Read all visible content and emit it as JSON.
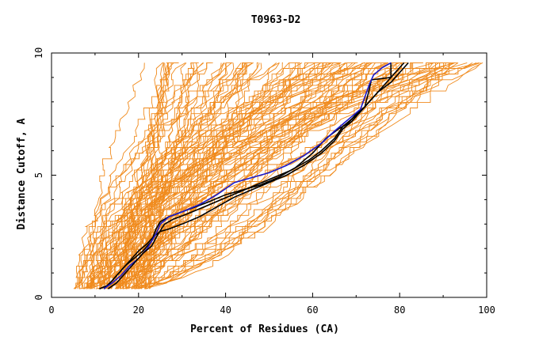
{
  "chart_data": {
    "type": "line",
    "title": "T0963-D2",
    "xlabel": "Percent of Residues (CA)",
    "ylabel": "Distance Cutoff, A",
    "xlim": [
      0,
      100
    ],
    "ylim": [
      0,
      10
    ],
    "x_ticks": [
      0,
      20,
      40,
      60,
      80,
      100
    ],
    "y_ticks": [
      0,
      5,
      10
    ],
    "grid": false,
    "colors": {
      "background_models": "#f08a1c",
      "highlight_1": "#000000",
      "highlight_2": "#000000",
      "highlight_3": "#1a1acc",
      "axes": "#000000"
    },
    "background_envelope": {
      "description_free": true,
      "model_count": 120,
      "start_x_range": [
        5,
        22
      ],
      "end_x_range": [
        20,
        100
      ],
      "y_start": 0.35,
      "y_end": 9.6
    },
    "series": [
      {
        "color": "#000000",
        "x": [
          11,
          13,
          15,
          17,
          19,
          21,
          23,
          24,
          25,
          27,
          30,
          33,
          36,
          40,
          44,
          48,
          52,
          56,
          60,
          63,
          66,
          68,
          70,
          72,
          73,
          73.5,
          78,
          78
        ],
        "y": [
          0.35,
          0.5,
          0.9,
          1.3,
          1.6,
          1.9,
          2.3,
          2.8,
          3.1,
          3.3,
          3.5,
          3.7,
          3.9,
          4.2,
          4.4,
          4.6,
          4.9,
          5.3,
          5.9,
          6.5,
          6.9,
          7.1,
          7.5,
          7.8,
          8.5,
          8.9,
          9.0,
          9.6
        ]
      },
      {
        "color": "#000000",
        "x": [
          12,
          14,
          16,
          18,
          20,
          22,
          23.5,
          25,
          27,
          30,
          34,
          38,
          42,
          46,
          50,
          54,
          58,
          62,
          65,
          67,
          69,
          71,
          73,
          75,
          78,
          80,
          82
        ],
        "y": [
          0.35,
          0.7,
          1.1,
          1.5,
          1.9,
          2.2,
          2.5,
          2.7,
          2.8,
          3.0,
          3.3,
          3.7,
          4.1,
          4.4,
          4.7,
          5.0,
          5.4,
          5.9,
          6.4,
          6.9,
          7.2,
          7.6,
          8.0,
          8.4,
          8.8,
          9.2,
          9.6
        ]
      },
      {
        "color": "#1a1acc",
        "x": [
          12,
          14,
          16,
          18,
          20,
          22,
          24,
          25,
          27,
          30,
          34,
          38,
          42,
          46,
          50,
          54,
          58,
          62,
          65,
          67,
          69,
          71,
          72,
          73,
          74,
          76,
          78
        ],
        "y": [
          0.35,
          0.6,
          0.9,
          1.3,
          1.6,
          2.0,
          2.6,
          3.0,
          3.3,
          3.5,
          3.8,
          4.2,
          4.7,
          4.9,
          5.1,
          5.4,
          5.8,
          6.3,
          6.8,
          7.1,
          7.4,
          7.7,
          8.2,
          8.7,
          9.1,
          9.4,
          9.6
        ]
      },
      {
        "color": "#000000",
        "x": [
          13,
          15,
          17,
          19,
          21,
          23,
          24.5,
          26,
          28,
          31,
          35,
          39,
          43,
          47,
          51,
          55,
          59,
          62,
          65,
          67,
          69,
          71,
          73,
          75,
          77,
          79,
          81
        ],
        "y": [
          0.35,
          0.6,
          1.0,
          1.4,
          1.8,
          2.1,
          2.6,
          3.0,
          3.2,
          3.4,
          3.7,
          4.0,
          4.3,
          4.6,
          4.9,
          5.2,
          5.6,
          6.0,
          6.5,
          7.0,
          7.3,
          7.6,
          8.0,
          8.4,
          8.8,
          9.2,
          9.6
        ]
      }
    ]
  }
}
